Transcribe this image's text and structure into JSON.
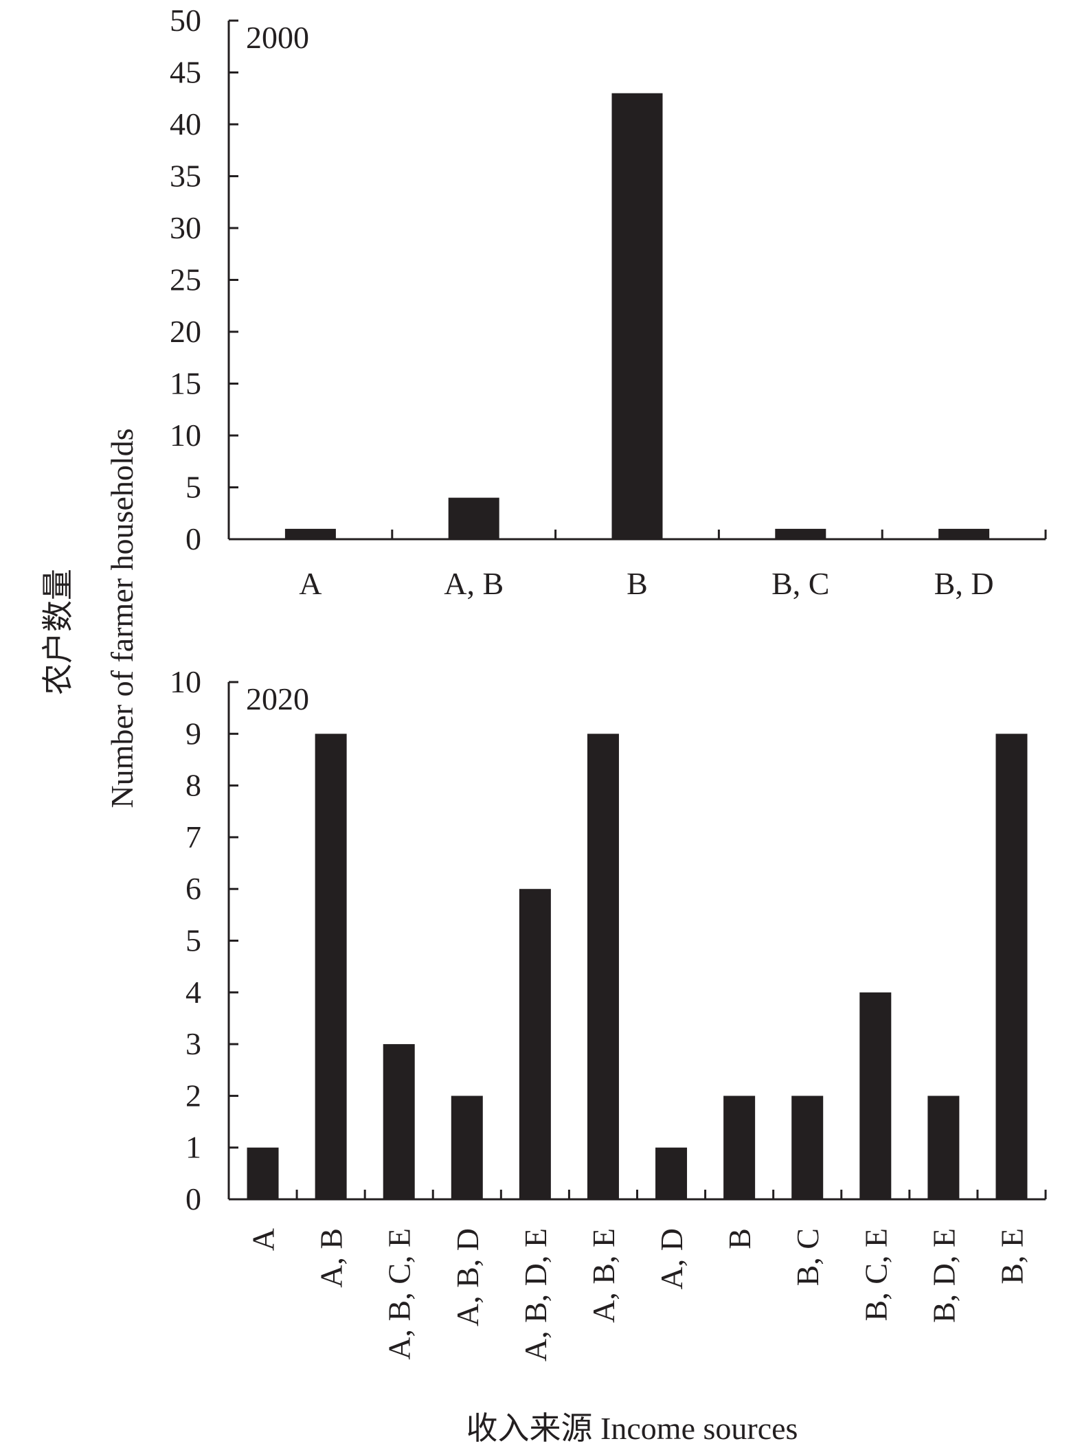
{
  "chart_data": [
    {
      "type": "bar",
      "panel_label": "2000",
      "categories": [
        "A",
        "A, B",
        "B",
        "B, C",
        "B, D"
      ],
      "values": [
        1,
        4,
        43,
        1,
        1
      ],
      "ylim": [
        0,
        50
      ],
      "yticks": [
        "0",
        "5",
        "10",
        "15",
        "20",
        "25",
        "30",
        "35",
        "40",
        "45",
        "50"
      ],
      "grid": false
    },
    {
      "type": "bar",
      "panel_label": "2020",
      "categories": [
        "A",
        "A, B",
        "A, B, C, E",
        "A, B, D",
        "A, B, D, E",
        "A, B, E",
        "A, D",
        "B",
        "B, C",
        "B, C, E",
        "B, D, E",
        "B, E"
      ],
      "values": [
        1,
        9,
        3,
        2,
        6,
        9,
        1,
        2,
        2,
        4,
        2,
        9
      ],
      "ylim": [
        0,
        10
      ],
      "yticks": [
        "0",
        "1",
        "2",
        "3",
        "4",
        "5",
        "6",
        "7",
        "8",
        "9",
        "10"
      ],
      "grid": false
    }
  ],
  "ylabel_cn": "农户数量",
  "ylabel_en": "Number of farmer households",
  "xlabel": "收入来源 Income sources",
  "colors": {
    "bar": "#231f20",
    "axis": "#231f20"
  }
}
